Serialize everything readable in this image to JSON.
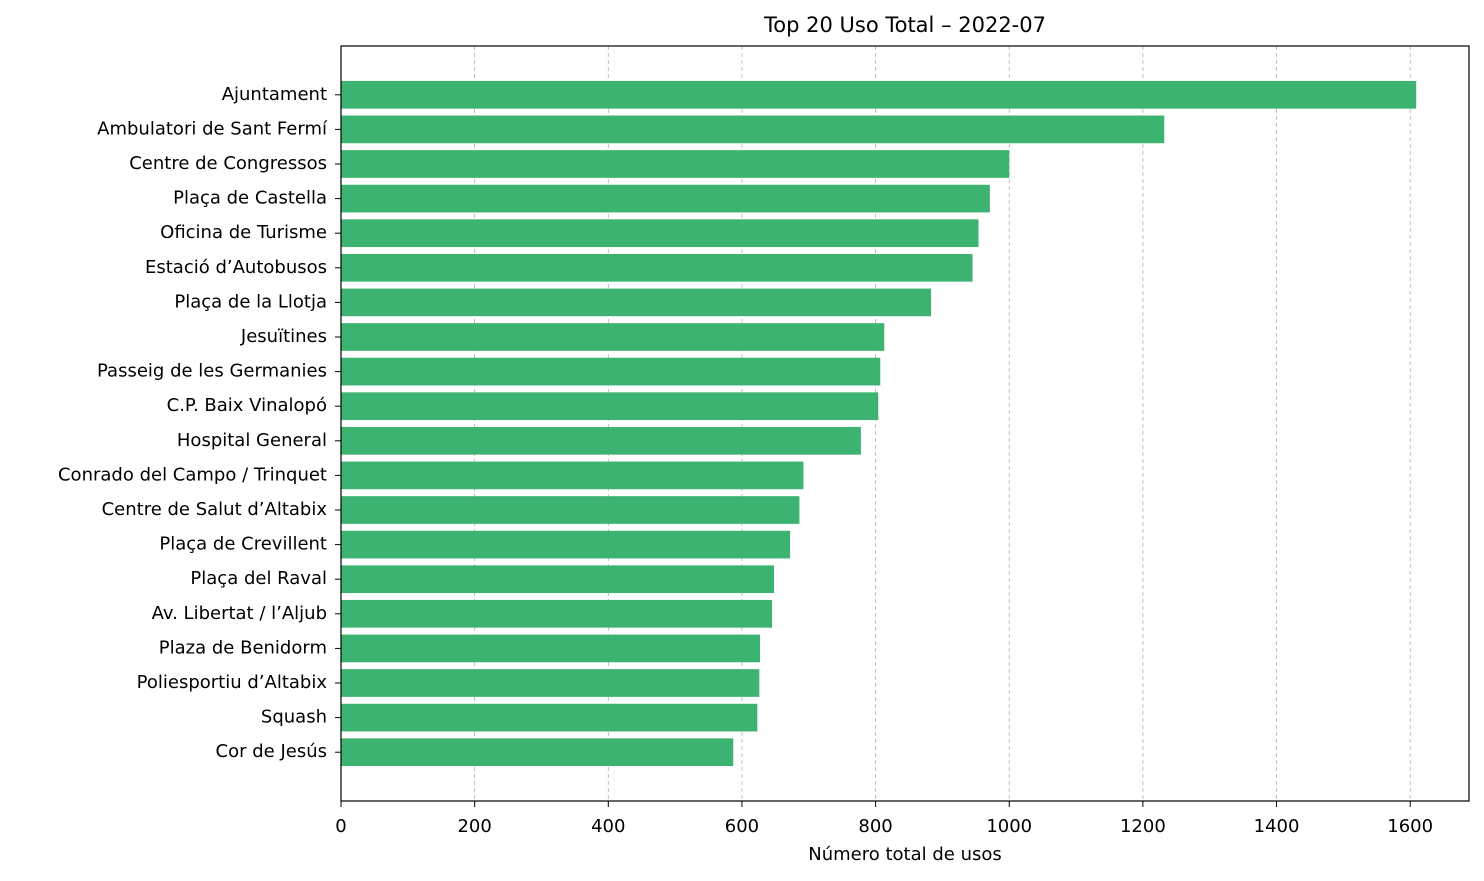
{
  "chart_data": {
    "type": "barh",
    "title": "Top 20 Uso Total – 2022-07",
    "x_label": "Número total de usos",
    "categories": [
      "Ajuntament",
      "Ambulatori de Sant Fermí",
      "Centre de Congressos",
      "Plaça de Castella",
      "Oficina de Turisme",
      "Estació d’Autobusos",
      "Plaça de la Llotja",
      "Jesuïtines",
      "Passeig de les Germanies",
      "C.P. Baix Vinalopó",
      "Hospital General",
      "Conrado del Campo / Trinquet",
      "Centre de Salut d’Altabix",
      "Plaça de Crevillent",
      "Plaça del Raval",
      "Av. Libertat / l’Aljub",
      "Plaza de Benidorm",
      "Poliesportiu d’Altabix",
      "Squash",
      "Cor de Jesús"
    ],
    "values": [
      1609,
      1232,
      1000,
      971,
      954,
      945,
      883,
      813,
      807,
      804,
      778,
      692,
      686,
      672,
      648,
      645,
      627,
      626,
      623,
      587
    ],
    "color": "#3cb371",
    "xlim": [
      0,
      1688
    ],
    "xticks": [
      0,
      200,
      400,
      600,
      800,
      1000,
      1200,
      1400,
      1600
    ],
    "grid": true
  }
}
